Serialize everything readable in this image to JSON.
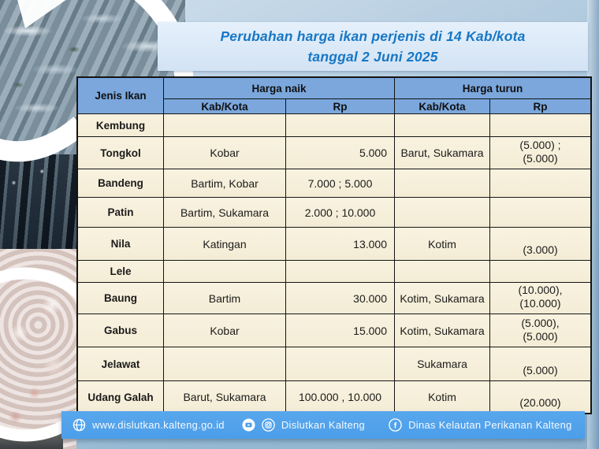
{
  "title": {
    "line1": "Perubahan  harga ikan perjenis di 14 Kab/kota",
    "line2": "tanggal  2 Juni 2025"
  },
  "table": {
    "headers": {
      "jenis": "Jenis Ikan",
      "naik": "Harga  naik",
      "turun": "Harga  turun",
      "kab": "Kab/Kota",
      "rp": "Rp"
    },
    "rows": [
      {
        "jenis": "Kembung",
        "naik_kab": "",
        "naik_rp": "",
        "turun_kab": "",
        "turun_rp": ""
      },
      {
        "jenis": "Tongkol",
        "naik_kab": "Kobar",
        "naik_rp": "5.000",
        "turun_kab": "Barut, Sukamara",
        "turun_rp": "(5.000) ;\n(5.000)"
      },
      {
        "jenis": "Bandeng",
        "naik_kab": "Bartim, Kobar",
        "naik_rp": "7.000 ; 5.000",
        "turun_kab": "",
        "turun_rp": ""
      },
      {
        "jenis": "Patin",
        "naik_kab": "Bartim, Sukamara",
        "naik_rp": "2.000 ; 10.000",
        "turun_kab": "",
        "turun_rp": ""
      },
      {
        "jenis": "Nila",
        "naik_kab": "Katingan",
        "naik_rp": "13.000",
        "turun_kab": "Kotim",
        "turun_rp": "(3.000)"
      },
      {
        "jenis": "Lele",
        "naik_kab": "",
        "naik_rp": "",
        "turun_kab": "",
        "turun_rp": ""
      },
      {
        "jenis": "Baung",
        "naik_kab": "Bartim",
        "naik_rp": "30.000",
        "turun_kab": "Kotim, Sukamara",
        "turun_rp": "(10.000),\n(10.000)"
      },
      {
        "jenis": "Gabus",
        "naik_kab": "Kobar",
        "naik_rp": "15.000",
        "turun_kab": "Kotim, Sukamara",
        "turun_rp": "(5.000),\n(5.000)"
      },
      {
        "jenis": "Jelawat",
        "naik_kab": "",
        "naik_rp": "",
        "turun_kab": "Sukamara",
        "turun_rp": "(5.000)"
      },
      {
        "jenis": "Udang Galah",
        "naik_kab": "Barut, Sukamara",
        "naik_rp": "100.000 , 10.000",
        "turun_kab": "Kotim",
        "turun_rp": "(20.000)"
      }
    ]
  },
  "footer": {
    "website": "www.dislutkan.kalteng.go.id",
    "social_account": "Dislutkan Kalteng",
    "facebook_page": "Dinas Kelautan Perikanan Kalteng",
    "icons": [
      "globe-icon",
      "youtube-icon",
      "instagram-icon",
      "facebook-icon"
    ]
  },
  "colors": {
    "header_blue": "#7ba7dd",
    "row_cream": "#f7f0db",
    "footer_blue": "#4c9ee9",
    "title_text": "#1777c6",
    "title_bg": "#dce9f7",
    "bg_top": "#d2e2ee",
    "bg_bottom": "#8cb0cc"
  }
}
